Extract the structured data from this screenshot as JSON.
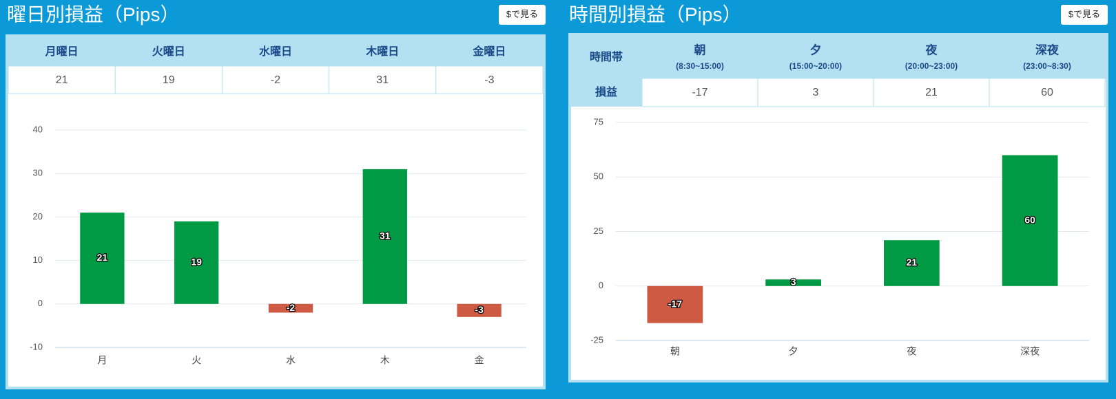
{
  "panels": [
    {
      "title": "曜日別損益（Pips）",
      "button": "$で見る",
      "table": {
        "headers": [
          "月曜日",
          "火曜日",
          "水曜日",
          "木曜日",
          "金曜日"
        ]
      }
    },
    {
      "title": "時間別損益（Pips）",
      "button": "$で見る",
      "table": {
        "row_labels": [
          "時間帯",
          "損益"
        ],
        "headers": [
          {
            "label": "朝",
            "sub": "(8:30~15:00)"
          },
          {
            "label": "夕",
            "sub": "(15:00~20:00)"
          },
          {
            "label": "夜",
            "sub": "(20:00~23:00)"
          },
          {
            "label": "深夜",
            "sub": "(23:00~8:30)"
          }
        ]
      }
    }
  ],
  "chart_data": [
    {
      "type": "bar",
      "categories": [
        "月",
        "火",
        "水",
        "木",
        "金"
      ],
      "values": [
        21,
        19,
        -2,
        31,
        -3
      ],
      "positive_color": "#009a44",
      "negative_color": "#cf5a44",
      "ylim": [
        -10,
        40
      ],
      "yticks": [
        -10,
        0,
        10,
        20,
        30,
        40
      ],
      "grid": true
    },
    {
      "type": "bar",
      "categories": [
        "朝",
        "夕",
        "夜",
        "深夜"
      ],
      "values": [
        -17,
        3,
        21,
        60
      ],
      "positive_color": "#009a44",
      "negative_color": "#cf5a44",
      "ylim": [
        -25,
        75
      ],
      "yticks": [
        -25,
        0,
        25,
        50,
        75
      ],
      "grid": true
    }
  ]
}
